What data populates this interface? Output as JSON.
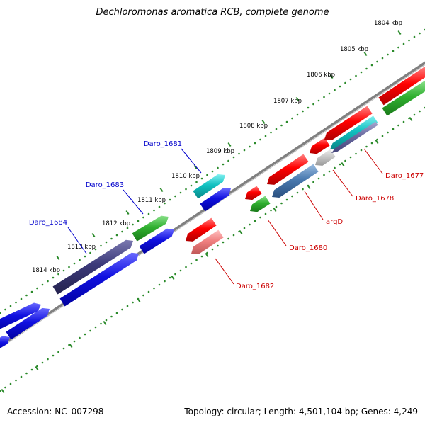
{
  "title": "Dechloromonas aromatica RCB, complete genome",
  "accession": "Accession: NC_007298",
  "summary": "Topology: circular; Length: 4,501,104 bp; Genes: 4,249",
  "colors": {
    "ruler": "#2a8a2a",
    "backbone": "#808080",
    "blue": "#1010e0",
    "darkpurple": "#3c3a7a",
    "green": "#30b030",
    "cyan": "#10c0c0",
    "red": "#ff0000",
    "pink": "#f08080",
    "steelblue": "#4a7ab0",
    "lightgray": "#c8c8c8",
    "purplegray": "#6a6aa0",
    "labelBlue": "#0000cc",
    "labelRed": "#cc0000"
  },
  "ruler_ticks": [
    {
      "label": "1804 kbp"
    },
    {
      "label": "1805 kbp"
    },
    {
      "label": "1806 kbp"
    },
    {
      "label": "1807 kbp"
    },
    {
      "label": "1808 kbp"
    },
    {
      "label": "1809 kbp"
    },
    {
      "label": "1810 kbp"
    },
    {
      "label": "1811 kbp"
    },
    {
      "label": "1812 kbp"
    },
    {
      "label": "1813 kbp"
    },
    {
      "label": "1814 kbp"
    }
  ],
  "gene_labels_forward": [
    {
      "label": "Daro_1681"
    },
    {
      "label": "Daro_1683"
    },
    {
      "label": "Daro_1684"
    }
  ],
  "gene_labels_reverse": [
    {
      "label": "Daro_1677"
    },
    {
      "label": "Daro_1678"
    },
    {
      "label": "argD"
    },
    {
      "label": "Daro_1680"
    },
    {
      "label": "Daro_1682"
    }
  ]
}
